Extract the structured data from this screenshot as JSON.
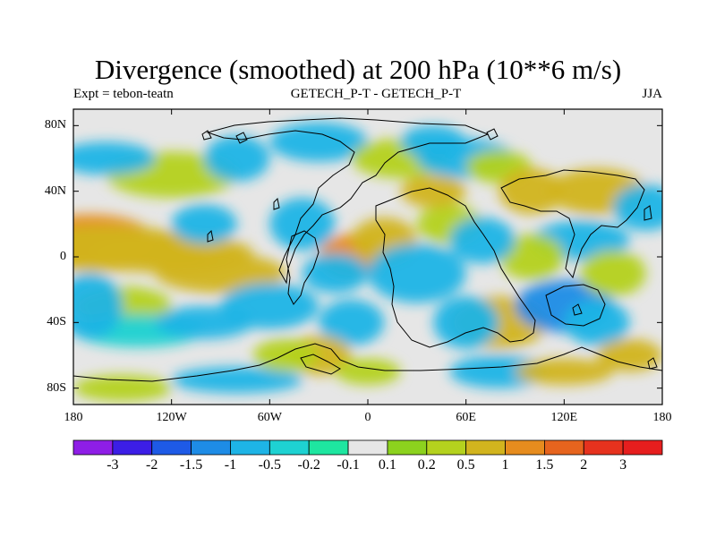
{
  "title": "Divergence (smoothed) at 200 hPa (10**6 m/s)",
  "subtitle_left": "Expt = tebon-teatn",
  "subtitle_center": "GETECH_P-T - GETECH_P-T",
  "subtitle_right": "JJA",
  "axes": {
    "lat_labels": [
      "80N",
      "40N",
      "0",
      "40S",
      "80S"
    ],
    "lon_labels": [
      "180",
      "120W",
      "60W",
      "0",
      "60E",
      "120E",
      "180"
    ]
  },
  "colorbar": {
    "labels": [
      "-3",
      "-2",
      "-1.5",
      "-1",
      "-0.5",
      "-0.2",
      "-0.1",
      "0.1",
      "0.2",
      "0.5",
      "1",
      "1.5",
      "2",
      "3"
    ],
    "colors": [
      "#8e1ee6",
      "#3c1ee6",
      "#1e5ae6",
      "#1e8ce6",
      "#1eb4e6",
      "#1ed2d2",
      "#1ee6a0",
      "#e6e6e6",
      "#8cd21e",
      "#b4d21e",
      "#d2b41e",
      "#e68c1e",
      "#e6641e",
      "#e6321e",
      "#e61e1e"
    ]
  },
  "chart_data": {
    "type": "heatmap",
    "title": "Divergence (smoothed) at 200 hPa (10**6 m/s)",
    "season": "JJA",
    "experiment": "tebon-teatn",
    "x_range": [
      -180,
      180
    ],
    "y_range": [
      -90,
      90
    ],
    "levels": [
      -3,
      -2,
      -1.5,
      -1,
      -0.5,
      -0.2,
      -0.1,
      0.1,
      0.2,
      0.5,
      1,
      1.5,
      2,
      3
    ]
  }
}
